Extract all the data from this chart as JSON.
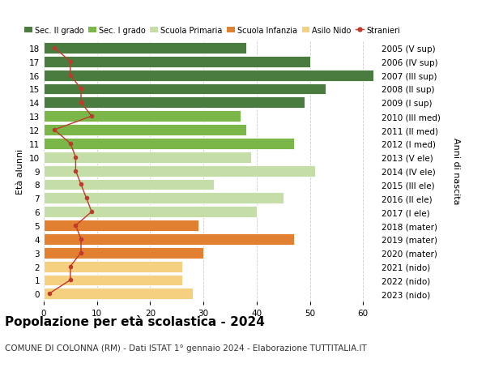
{
  "ages": [
    18,
    17,
    16,
    15,
    14,
    13,
    12,
    11,
    10,
    9,
    8,
    7,
    6,
    5,
    4,
    3,
    2,
    1,
    0
  ],
  "anni_nascita": [
    "2005 (V sup)",
    "2006 (IV sup)",
    "2007 (III sup)",
    "2008 (II sup)",
    "2009 (I sup)",
    "2010 (III med)",
    "2011 (II med)",
    "2012 (I med)",
    "2013 (V ele)",
    "2014 (IV ele)",
    "2015 (III ele)",
    "2016 (II ele)",
    "2017 (I ele)",
    "2018 (mater)",
    "2019 (mater)",
    "2020 (mater)",
    "2021 (nido)",
    "2022 (nido)",
    "2023 (nido)"
  ],
  "bar_values": [
    38,
    50,
    62,
    53,
    49,
    37,
    38,
    47,
    39,
    51,
    32,
    45,
    40,
    29,
    47,
    30,
    26,
    26,
    28
  ],
  "bar_colors": [
    "#4a7c3f",
    "#4a7c3f",
    "#4a7c3f",
    "#4a7c3f",
    "#4a7c3f",
    "#7ab648",
    "#7ab648",
    "#7ab648",
    "#c5dea8",
    "#c5dea8",
    "#c5dea8",
    "#c5dea8",
    "#c5dea8",
    "#e08030",
    "#e08030",
    "#e08030",
    "#f5d080",
    "#f5d080",
    "#f5d080"
  ],
  "stranieri_values": [
    2,
    5,
    5,
    7,
    7,
    9,
    2,
    5,
    6,
    6,
    7,
    8,
    9,
    6,
    7,
    7,
    5,
    5,
    1
  ],
  "title": "Popolazione per età scolastica - 2024",
  "subtitle": "COMUNE DI COLONNA (RM) - Dati ISTAT 1° gennaio 2024 - Elaborazione TUTTITALIA.IT",
  "ylabel_left": "Età alunni",
  "ylabel_right": "Anni di nascita",
  "xlim": [
    0,
    63
  ],
  "ylim": [
    -0.55,
    18.55
  ],
  "legend_labels": [
    "Sec. II grado",
    "Sec. I grado",
    "Scuola Primaria",
    "Scuola Infanzia",
    "Asilo Nido",
    "Stranieri"
  ],
  "legend_colors": [
    "#4a7c3f",
    "#7ab648",
    "#c5dea8",
    "#e08030",
    "#f5d080",
    "#c0392b"
  ],
  "stranieri_color": "#c0392b",
  "bar_edge_color": "white",
  "background_color": "#ffffff",
  "grid_color": "#cccccc",
  "bar_height": 0.82,
  "title_fontsize": 11,
  "subtitle_fontsize": 7.5,
  "axis_fontsize": 7.5,
  "legend_fontsize": 7,
  "ylabel_fontsize": 8
}
